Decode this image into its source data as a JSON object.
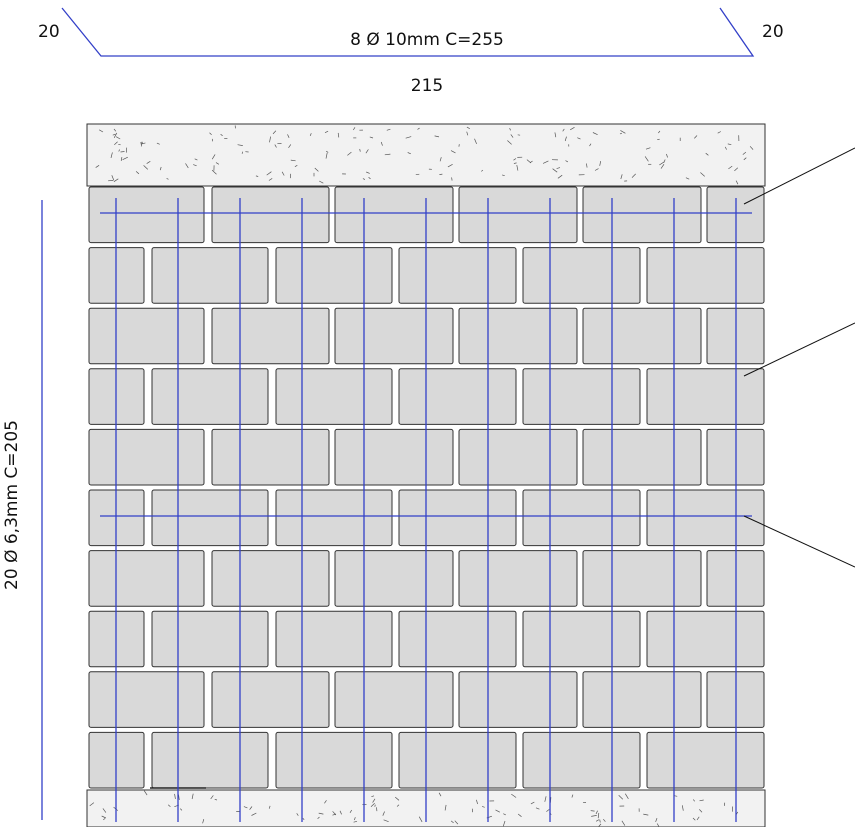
{
  "top_bar": {
    "hook_left": "20",
    "hook_right": "20",
    "spec": "8 Ø 10mm C=255",
    "length": "215"
  },
  "vertical_bars": {
    "spec": "20 Ø 6,3mm  C=205"
  },
  "colors": {
    "rebar": "#3340c8",
    "brick_fill": "#d9d9d9",
    "brick_stroke": "#333333",
    "concrete_fill": "#f2f2f2",
    "leader": "#111111"
  }
}
